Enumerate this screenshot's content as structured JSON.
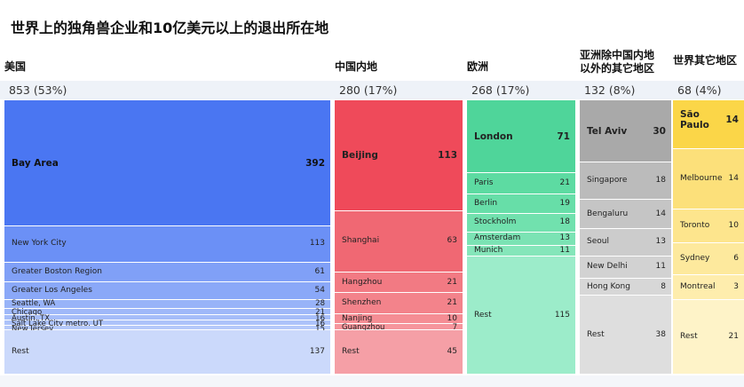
{
  "title": "世界上的独角兽企业和10亿美元以上的退出所在地",
  "chart_data": {
    "type": "treemap",
    "title": "世界上的独角兽企业和10亿美元以上的退出所在地",
    "regions": [
      {
        "name": "美国",
        "total": "853 (53%)",
        "value": 853,
        "cells": [
          {
            "name": "Bay Area",
            "value": 392,
            "color": "#4a76f2",
            "big": true
          },
          {
            "name": "New York City",
            "value": 113,
            "color": "#6b90f6"
          },
          {
            "name": "Greater Boston Region",
            "value": 61,
            "color": "#80a0f7"
          },
          {
            "name": "Greater Los Angeles",
            "value": 54,
            "color": "#8aa8f8"
          },
          {
            "name": "Seattle, WA",
            "value": 28,
            "color": "#98b3f8"
          },
          {
            "name": "Chicago",
            "value": 21,
            "color": "#9fb8f9"
          },
          {
            "name": "Austin, TX",
            "value": 16,
            "color": "#a6bdf9"
          },
          {
            "name": "Salt Lake City metro, UT",
            "value": 16,
            "color": "#adc3fa"
          },
          {
            "name": "New Jersey",
            "value": 15,
            "color": "#b4c8fa"
          },
          {
            "name": "Rest",
            "value": 137,
            "color": "#cbd9fb"
          }
        ]
      },
      {
        "name": "中国内地",
        "total": "280 (17%)",
        "value": 280,
        "cells": [
          {
            "name": "Beijing",
            "value": 113,
            "color": "#ef4a5a",
            "big": true
          },
          {
            "name": "Shanghai",
            "value": 63,
            "color": "#f06873"
          },
          {
            "name": "Hangzhou",
            "value": 21,
            "color": "#f27a83"
          },
          {
            "name": "Shenzhen",
            "value": 21,
            "color": "#f3838b"
          },
          {
            "name": "Nanjing",
            "value": 10,
            "color": "#f58d94"
          },
          {
            "name": "Guangzhou",
            "value": 7,
            "color": "#f6959c"
          },
          {
            "name": "Rest",
            "value": 45,
            "color": "#f59fa6"
          }
        ]
      },
      {
        "name": "欧洲",
        "total": "268 (17%)",
        "value": 268,
        "cells": [
          {
            "name": "London",
            "value": 71,
            "color": "#4fd59a",
            "big": true
          },
          {
            "name": "Paris",
            "value": 21,
            "color": "#5ddba2"
          },
          {
            "name": "Berlin",
            "value": 19,
            "color": "#67dea8"
          },
          {
            "name": "Stockholm",
            "value": 18,
            "color": "#71e1ae"
          },
          {
            "name": "Amsterdam",
            "value": 13,
            "color": "#7be3b4"
          },
          {
            "name": "Munich",
            "value": 11,
            "color": "#85e6ba"
          },
          {
            "name": "Rest",
            "value": 115,
            "color": "#9cecca"
          }
        ]
      },
      {
        "name": "亚洲除中国内地以外的其它地区",
        "total": "132 (8%)",
        "value": 132,
        "cells": [
          {
            "name": "Tel Aviv",
            "value": 30,
            "color": "#a9a9a9",
            "big": true
          },
          {
            "name": "Singapore",
            "value": 18,
            "color": "#bbbbbb"
          },
          {
            "name": "Bengaluru",
            "value": 14,
            "color": "#c5c5c5"
          },
          {
            "name": "Seoul",
            "value": 13,
            "color": "#cccccc"
          },
          {
            "name": "New Delhi",
            "value": 11,
            "color": "#d2d2d2"
          },
          {
            "name": "Hong Kong",
            "value": 8,
            "color": "#d7d7d7"
          },
          {
            "name": "Rest",
            "value": 38,
            "color": "#dedede"
          }
        ]
      },
      {
        "name": "世界其它地区",
        "total": "68 (4%)",
        "value": 68,
        "cells": [
          {
            "name": "São Paulo",
            "value": 14,
            "color": "#fbd648",
            "big": true
          },
          {
            "name": "Melbourne",
            "value": 14,
            "color": "#fce07a"
          },
          {
            "name": "Toronto",
            "value": 10,
            "color": "#fde58d"
          },
          {
            "name": "Sydney",
            "value": 6,
            "color": "#fde99d"
          },
          {
            "name": "Montreal",
            "value": 3,
            "color": "#feedad"
          },
          {
            "name": "Rest",
            "value": 21,
            "color": "#fef3c8"
          }
        ]
      }
    ]
  }
}
